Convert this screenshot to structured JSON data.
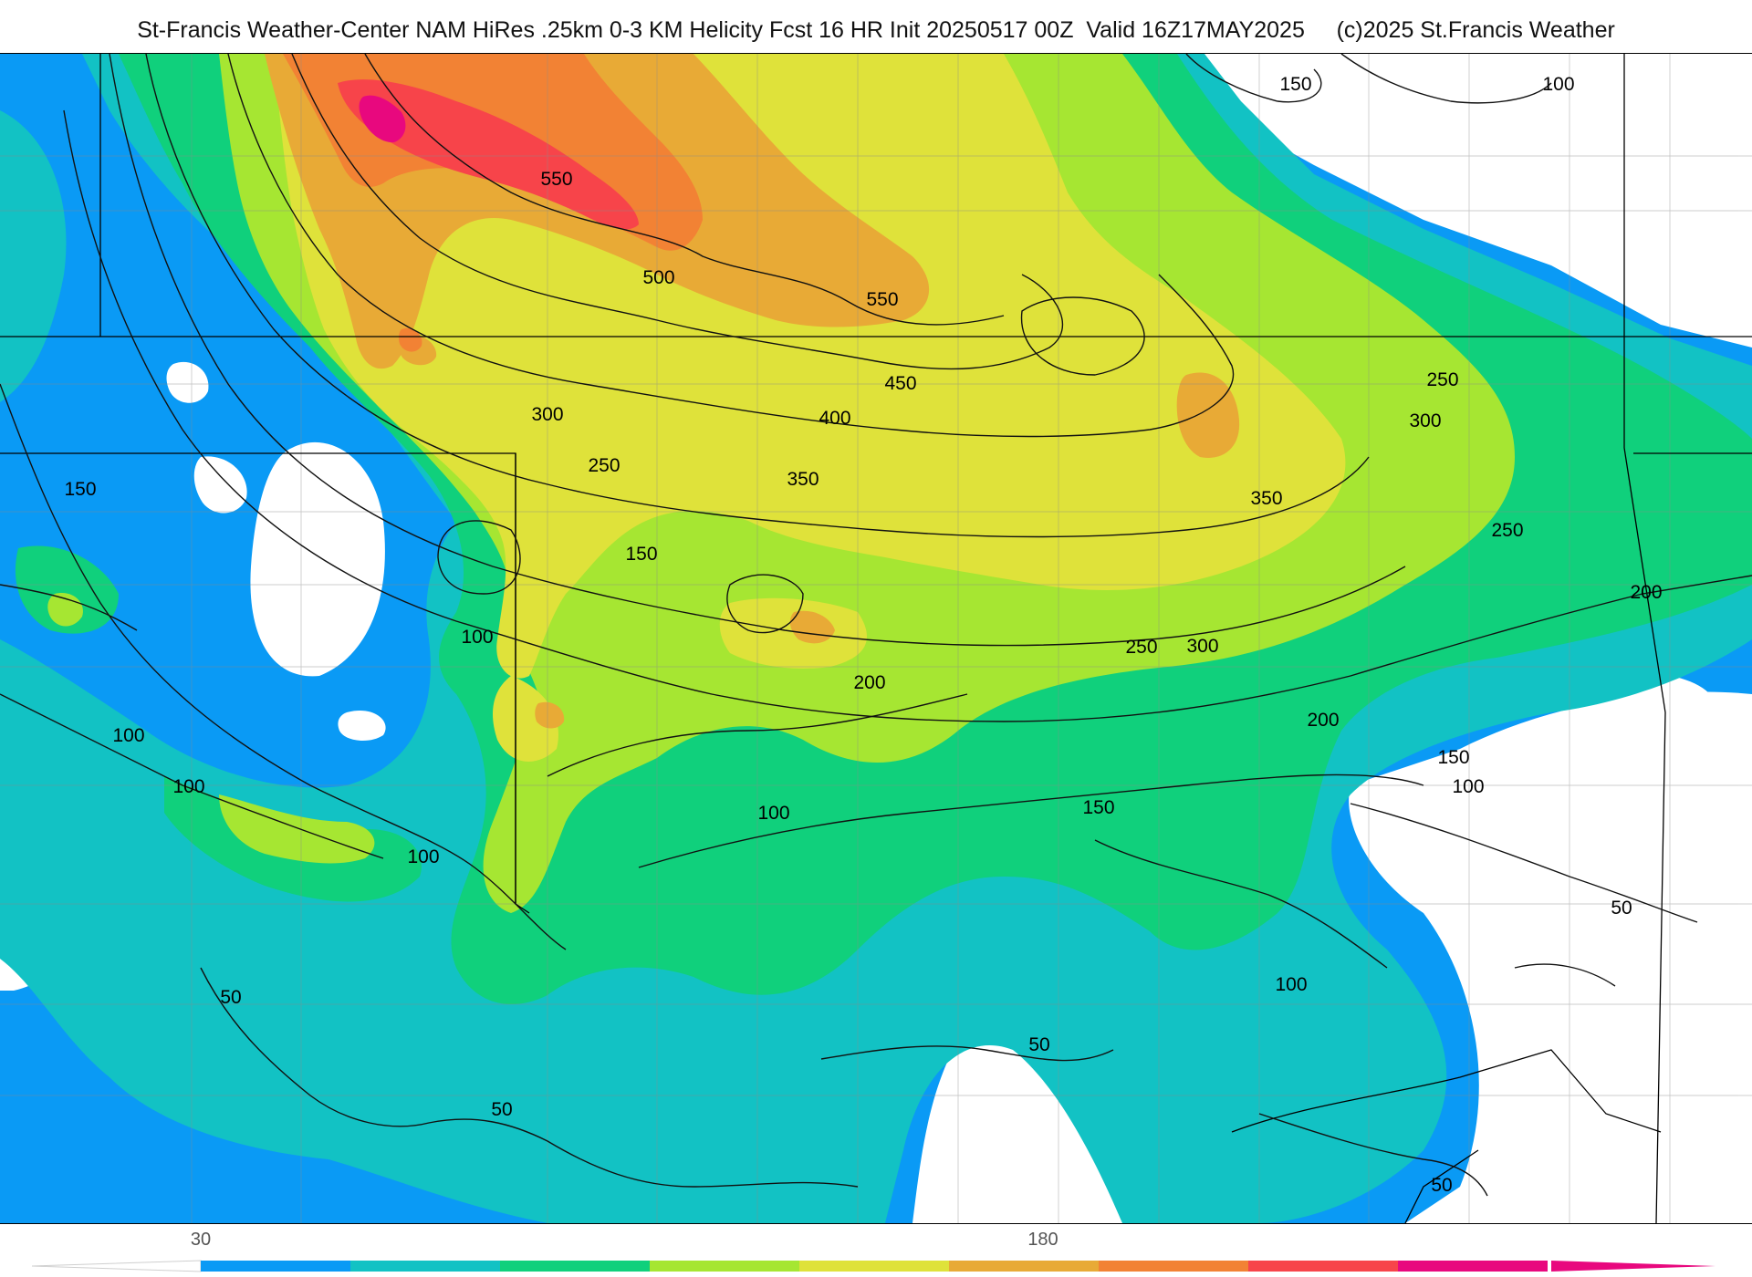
{
  "title": "St-Francis Weather-Center NAM HiRes .25km 0-3 KM Helicity Fcst 16 HR Init 20250517 00Z  Valid 16Z17MAY2025     (c)2025 St.Francis Weather",
  "colors": {
    "below": "#ffffff",
    "c30": "#0a9af5",
    "c60": "#12c2c4",
    "c90": "#10d07c",
    "c120": "#a6e632",
    "c150": "#dfe23a",
    "c180": "#e8aa36",
    "c210": "#f28234",
    "c240": "#f7444a",
    "c270": "#e8087e",
    "above": "#e8087e"
  },
  "colorbar": {
    "ticks": [
      {
        "label": "30"
      },
      {
        "label": "180"
      }
    ],
    "bins": [
      "#0a9af5",
      "#12c2c4",
      "#10d07c",
      "#a6e632",
      "#dfe23a",
      "#e8aa36",
      "#f28234",
      "#f7444a",
      "#e8087e"
    ]
  },
  "contour_labels": [
    {
      "text": "550"
    },
    {
      "text": "500"
    },
    {
      "text": "550"
    },
    {
      "text": "450"
    },
    {
      "text": "400"
    },
    {
      "text": "350"
    },
    {
      "text": "300"
    },
    {
      "text": "250"
    },
    {
      "text": "150"
    },
    {
      "text": "150"
    },
    {
      "text": "100"
    },
    {
      "text": "100"
    },
    {
      "text": "100"
    },
    {
      "text": "100"
    },
    {
      "text": "200"
    },
    {
      "text": "100"
    },
    {
      "text": "150"
    },
    {
      "text": "250"
    },
    {
      "text": "300"
    },
    {
      "text": "200"
    },
    {
      "text": "150"
    },
    {
      "text": "100"
    },
    {
      "text": "350"
    },
    {
      "text": "250"
    },
    {
      "text": "300"
    },
    {
      "text": "250"
    },
    {
      "text": "200"
    },
    {
      "text": "150"
    },
    {
      "text": "100"
    },
    {
      "text": "50"
    },
    {
      "text": "100"
    },
    {
      "text": "50"
    },
    {
      "text": "50"
    },
    {
      "text": "50"
    },
    {
      "text": "50"
    }
  ]
}
